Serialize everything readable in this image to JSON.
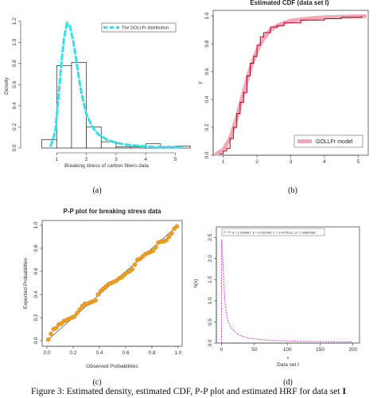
{
  "caption": {
    "text": "Figure 3: Estimated density, estimated CDF, P-P plot and estimated HRF for data set ",
    "bold": "I"
  },
  "chart_data": [
    {
      "id": "a",
      "panel_label": "(a)",
      "type": "bar",
      "subtype": "histogram-with-density",
      "title": "",
      "xlabel": "Breaking stress of carbon fibers data",
      "ylabel": "Density",
      "xlim": [
        0,
        5.2
      ],
      "ylim": [
        0,
        1.25
      ],
      "xticks": [
        1,
        2,
        3,
        4,
        5
      ],
      "yticks": [
        0.0,
        0.2,
        0.4,
        0.6,
        0.8,
        1.0,
        1.2
      ],
      "bins": [
        {
          "from": 0.5,
          "to": 1.0,
          "density": 0.08
        },
        {
          "from": 1.0,
          "to": 1.5,
          "density": 0.78
        },
        {
          "from": 1.5,
          "to": 2.0,
          "density": 0.81
        },
        {
          "from": 2.0,
          "to": 2.5,
          "density": 0.2
        },
        {
          "from": 2.5,
          "to": 3.0,
          "density": 0.06
        },
        {
          "from": 3.0,
          "to": 3.5,
          "density": 0.01
        },
        {
          "from": 3.5,
          "to": 4.0,
          "density": 0.01
        },
        {
          "from": 4.0,
          "to": 4.5,
          "density": 0.04
        },
        {
          "from": 4.5,
          "to": 5.0,
          "density": 0.01
        },
        {
          "from": 5.0,
          "to": 5.5,
          "density": 0.02
        }
      ],
      "density_curve": {
        "name": "The GOLLFr distribution",
        "color": "#33e0e8",
        "x": [
          0.8,
          0.95,
          1.05,
          1.15,
          1.25,
          1.35,
          1.45,
          1.55,
          1.65,
          1.75,
          1.85,
          2.0,
          2.2,
          2.4,
          2.7,
          3.0,
          3.4,
          3.8,
          4.3,
          5.2
        ],
        "y": [
          0.02,
          0.15,
          0.45,
          0.78,
          1.05,
          1.18,
          1.15,
          1.02,
          0.85,
          0.66,
          0.5,
          0.32,
          0.2,
          0.13,
          0.08,
          0.05,
          0.03,
          0.02,
          0.01,
          0.01
        ]
      },
      "legend_position": "top-right"
    },
    {
      "id": "b",
      "panel_label": "(b)",
      "type": "line",
      "title": "Estimated CDF (data set I)",
      "xlabel": "",
      "ylabel": "y",
      "xlim": [
        0.7,
        5.3
      ],
      "ylim": [
        0,
        1.04
      ],
      "xticks": [
        1,
        2,
        3,
        4,
        5
      ],
      "yticks": [
        0.0,
        0.2,
        0.4,
        0.6,
        0.8,
        1.0
      ],
      "series": [
        {
          "name": "GOLLFr model",
          "color": "#f4a9b8",
          "x": [
            0.8,
            1.0,
            1.2,
            1.4,
            1.6,
            1.8,
            2.0,
            2.2,
            2.4,
            2.6,
            2.8,
            3.0,
            3.3,
            3.6,
            4.0,
            4.5,
            5.0,
            5.2
          ],
          "y": [
            0.01,
            0.04,
            0.12,
            0.27,
            0.45,
            0.62,
            0.75,
            0.84,
            0.9,
            0.93,
            0.95,
            0.965,
            0.975,
            0.983,
            0.99,
            0.994,
            0.997,
            0.998
          ]
        },
        {
          "name": "",
          "color": "#b3001b",
          "x": [
            0.9,
            1.0,
            1.1,
            1.2,
            1.3,
            1.4,
            1.5,
            1.6,
            1.7,
            1.8,
            1.9,
            2.0,
            2.1,
            2.2,
            2.4,
            2.6,
            2.8,
            3.0,
            3.3,
            3.6,
            4.0,
            4.5,
            5.1
          ],
          "y": [
            0.01,
            0.03,
            0.05,
            0.12,
            0.2,
            0.3,
            0.38,
            0.45,
            0.57,
            0.66,
            0.71,
            0.79,
            0.85,
            0.88,
            0.92,
            0.93,
            0.95,
            0.95,
            0.97,
            0.97,
            0.98,
            0.99,
            1.0
          ]
        }
      ],
      "legend_position": "bottom-right"
    },
    {
      "id": "c",
      "panel_label": "(c)",
      "type": "scatter",
      "title": "P-P plot for breaking stress data",
      "xlabel": "Observed Probabilities",
      "ylabel": "Expected Probabilities",
      "xlim": [
        0,
        1
      ],
      "ylim": [
        0,
        1
      ],
      "xticks": [
        0.0,
        0.2,
        0.4,
        0.6,
        0.8,
        1.0
      ],
      "yticks": [
        0.0,
        0.2,
        0.4,
        0.6,
        0.8,
        1.0
      ],
      "point_color": "#f0a020",
      "reference_line": {
        "x": [
          0,
          1
        ],
        "y": [
          0,
          1
        ]
      },
      "points": {
        "x": [
          0.01,
          0.03,
          0.05,
          0.07,
          0.09,
          0.11,
          0.13,
          0.15,
          0.17,
          0.19,
          0.21,
          0.23,
          0.25,
          0.27,
          0.29,
          0.31,
          0.33,
          0.35,
          0.37,
          0.39,
          0.41,
          0.43,
          0.45,
          0.47,
          0.49,
          0.51,
          0.53,
          0.55,
          0.57,
          0.59,
          0.61,
          0.63,
          0.65,
          0.67,
          0.69,
          0.71,
          0.73,
          0.75,
          0.77,
          0.79,
          0.81,
          0.83,
          0.85,
          0.87,
          0.89,
          0.91,
          0.93,
          0.95,
          0.97,
          0.99
        ],
        "y": [
          0.01,
          0.06,
          0.1,
          0.11,
          0.14,
          0.15,
          0.17,
          0.18,
          0.19,
          0.2,
          0.21,
          0.24,
          0.27,
          0.3,
          0.32,
          0.32,
          0.33,
          0.34,
          0.35,
          0.4,
          0.43,
          0.45,
          0.47,
          0.49,
          0.5,
          0.51,
          0.52,
          0.54,
          0.55,
          0.57,
          0.59,
          0.6,
          0.62,
          0.66,
          0.7,
          0.71,
          0.73,
          0.75,
          0.76,
          0.77,
          0.78,
          0.81,
          0.85,
          0.86,
          0.86,
          0.87,
          0.9,
          0.93,
          0.97,
          0.99
        ]
      }
    },
    {
      "id": "d",
      "panel_label": "(d)",
      "type": "line",
      "title": "",
      "xlabel": "Data set I",
      "xlabel_small": "x",
      "ylabel": "h(x)",
      "xlim": [
        -8,
        210
      ],
      "ylim": [
        0,
        2.75
      ],
      "xticks": [
        0,
        50,
        100,
        150,
        200
      ],
      "yticks": [
        0.0,
        0.5,
        1.0,
        1.5,
        2.0,
        2.5
      ],
      "legend_text": "a = 1.996407, b = 4.102600, c = 1.4779111, d = 1.8540934",
      "legend_position": "top",
      "series": [
        {
          "name": "",
          "color": "#d63bd6",
          "x": [
            0.5,
            1,
            2,
            3,
            4,
            5,
            6,
            8,
            10,
            13,
            16,
            20,
            25,
            30,
            40,
            50,
            60,
            80,
            100,
            130,
            160,
            200
          ],
          "y": [
            2.45,
            2.3,
            1.9,
            1.55,
            1.25,
            1.0,
            0.85,
            0.65,
            0.52,
            0.41,
            0.34,
            0.27,
            0.21,
            0.17,
            0.12,
            0.1,
            0.08,
            0.06,
            0.05,
            0.04,
            0.035,
            0.03
          ]
        }
      ]
    }
  ]
}
